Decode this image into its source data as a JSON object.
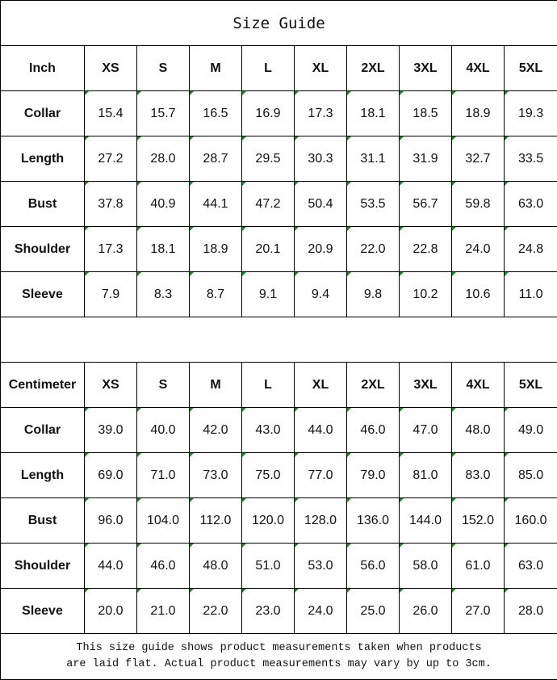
{
  "title": "Size Guide",
  "sizes": [
    "XS",
    "S",
    "M",
    "L",
    "XL",
    "2XL",
    "3XL",
    "4XL",
    "5XL"
  ],
  "inch": {
    "unit_label": "Inch",
    "rows": [
      {
        "label": "Collar",
        "values": [
          "15.4",
          "15.7",
          "16.5",
          "16.9",
          "17.3",
          "18.1",
          "18.5",
          "18.9",
          "19.3"
        ]
      },
      {
        "label": "Length",
        "values": [
          "27.2",
          "28.0",
          "28.7",
          "29.5",
          "30.3",
          "31.1",
          "31.9",
          "32.7",
          "33.5"
        ]
      },
      {
        "label": "Bust",
        "values": [
          "37.8",
          "40.9",
          "44.1",
          "47.2",
          "50.4",
          "53.5",
          "56.7",
          "59.8",
          "63.0"
        ]
      },
      {
        "label": "Shoulder",
        "values": [
          "17.3",
          "18.1",
          "18.9",
          "20.1",
          "20.9",
          "22.0",
          "22.8",
          "24.0",
          "24.8"
        ]
      },
      {
        "label": "Sleeve",
        "values": [
          "7.9",
          "8.3",
          "8.7",
          "9.1",
          "9.4",
          "9.8",
          "10.2",
          "10.6",
          "11.0"
        ]
      }
    ]
  },
  "centimeter": {
    "unit_label": "Centimeter",
    "rows": [
      {
        "label": "Collar",
        "values": [
          "39.0",
          "40.0",
          "42.0",
          "43.0",
          "44.0",
          "46.0",
          "47.0",
          "48.0",
          "49.0"
        ]
      },
      {
        "label": "Length",
        "values": [
          "69.0",
          "71.0",
          "73.0",
          "75.0",
          "77.0",
          "79.0",
          "81.0",
          "83.0",
          "85.0"
        ]
      },
      {
        "label": "Bust",
        "values": [
          "96.0",
          "104.0",
          "112.0",
          "120.0",
          "128.0",
          "136.0",
          "144.0",
          "152.0",
          "160.0"
        ]
      },
      {
        "label": "Shoulder",
        "values": [
          "44.0",
          "46.0",
          "48.0",
          "51.0",
          "53.0",
          "56.0",
          "58.0",
          "61.0",
          "63.0"
        ]
      },
      {
        "label": "Sleeve",
        "values": [
          "20.0",
          "21.0",
          "22.0",
          "23.0",
          "24.0",
          "25.0",
          "26.0",
          "27.0",
          "28.0"
        ]
      }
    ]
  },
  "footer": {
    "line1": "This size guide shows product measurements taken when products",
    "line2": "are laid flat. Actual product measurements may vary by up to 3cm."
  },
  "colors": {
    "error_indicator": "#118a1a",
    "border": "#000000"
  }
}
